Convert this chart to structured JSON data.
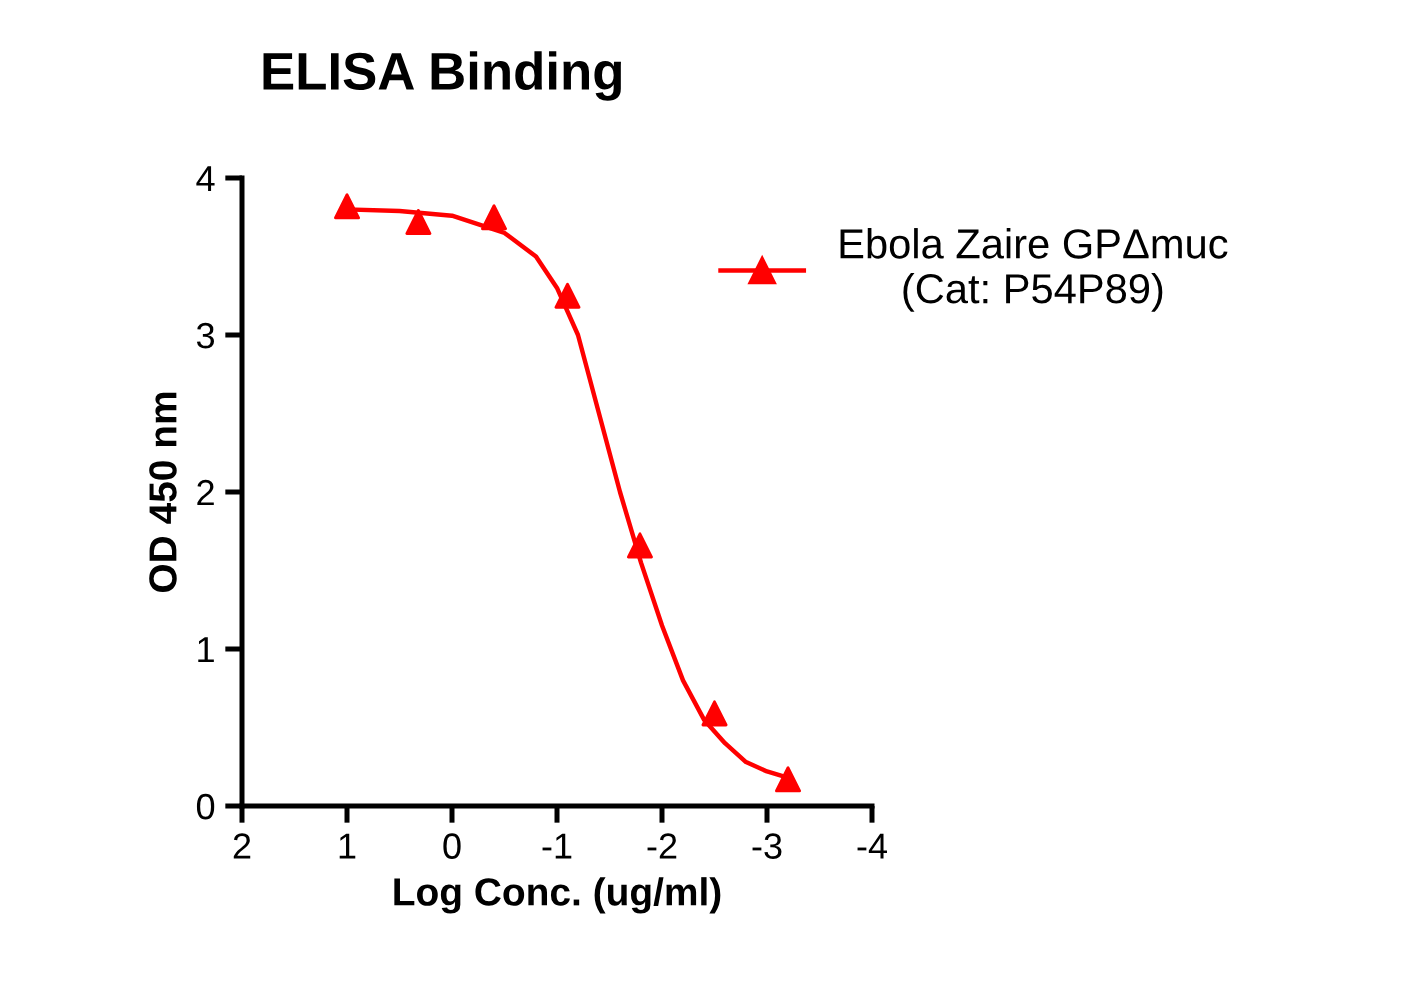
{
  "chart_data": {
    "type": "scatter",
    "title": "ELISA Binding",
    "xlabel": "Log Conc. (ug/ml)",
    "ylabel": "OD 450 nm",
    "xlim": [
      2,
      -4
    ],
    "xticks": [
      2,
      1,
      0,
      -1,
      -2,
      -3,
      -4
    ],
    "ylim": [
      0,
      4
    ],
    "yticks": [
      0,
      1,
      2,
      3,
      4
    ],
    "grid": false,
    "legend": "right",
    "series": [
      {
        "name": "Ebola Zaire GPΔmuc\n(Cat: P54P89)",
        "marker": "triangle",
        "color": "#ff0000",
        "x": [
          1.0,
          0.32,
          -0.4,
          -1.1,
          -1.79,
          -2.5,
          -3.2
        ],
        "values": [
          3.82,
          3.72,
          3.75,
          3.25,
          1.66,
          0.59,
          0.17
        ]
      },
      {
        "type": "line",
        "marker": "none",
        "color": "#ff0000",
        "line_style": "solid",
        "x": [
          1.0,
          0.5,
          0.0,
          -0.5,
          -0.8,
          -1.0,
          -1.2,
          -1.4,
          -1.6,
          -1.8,
          -2.0,
          -2.2,
          -2.4,
          -2.6,
          -2.8,
          -3.0,
          -3.2
        ],
        "values": [
          3.8,
          3.79,
          3.76,
          3.65,
          3.5,
          3.3,
          3.0,
          2.5,
          2.0,
          1.55,
          1.15,
          0.8,
          0.55,
          0.4,
          0.28,
          0.22,
          0.18
        ]
      }
    ]
  }
}
